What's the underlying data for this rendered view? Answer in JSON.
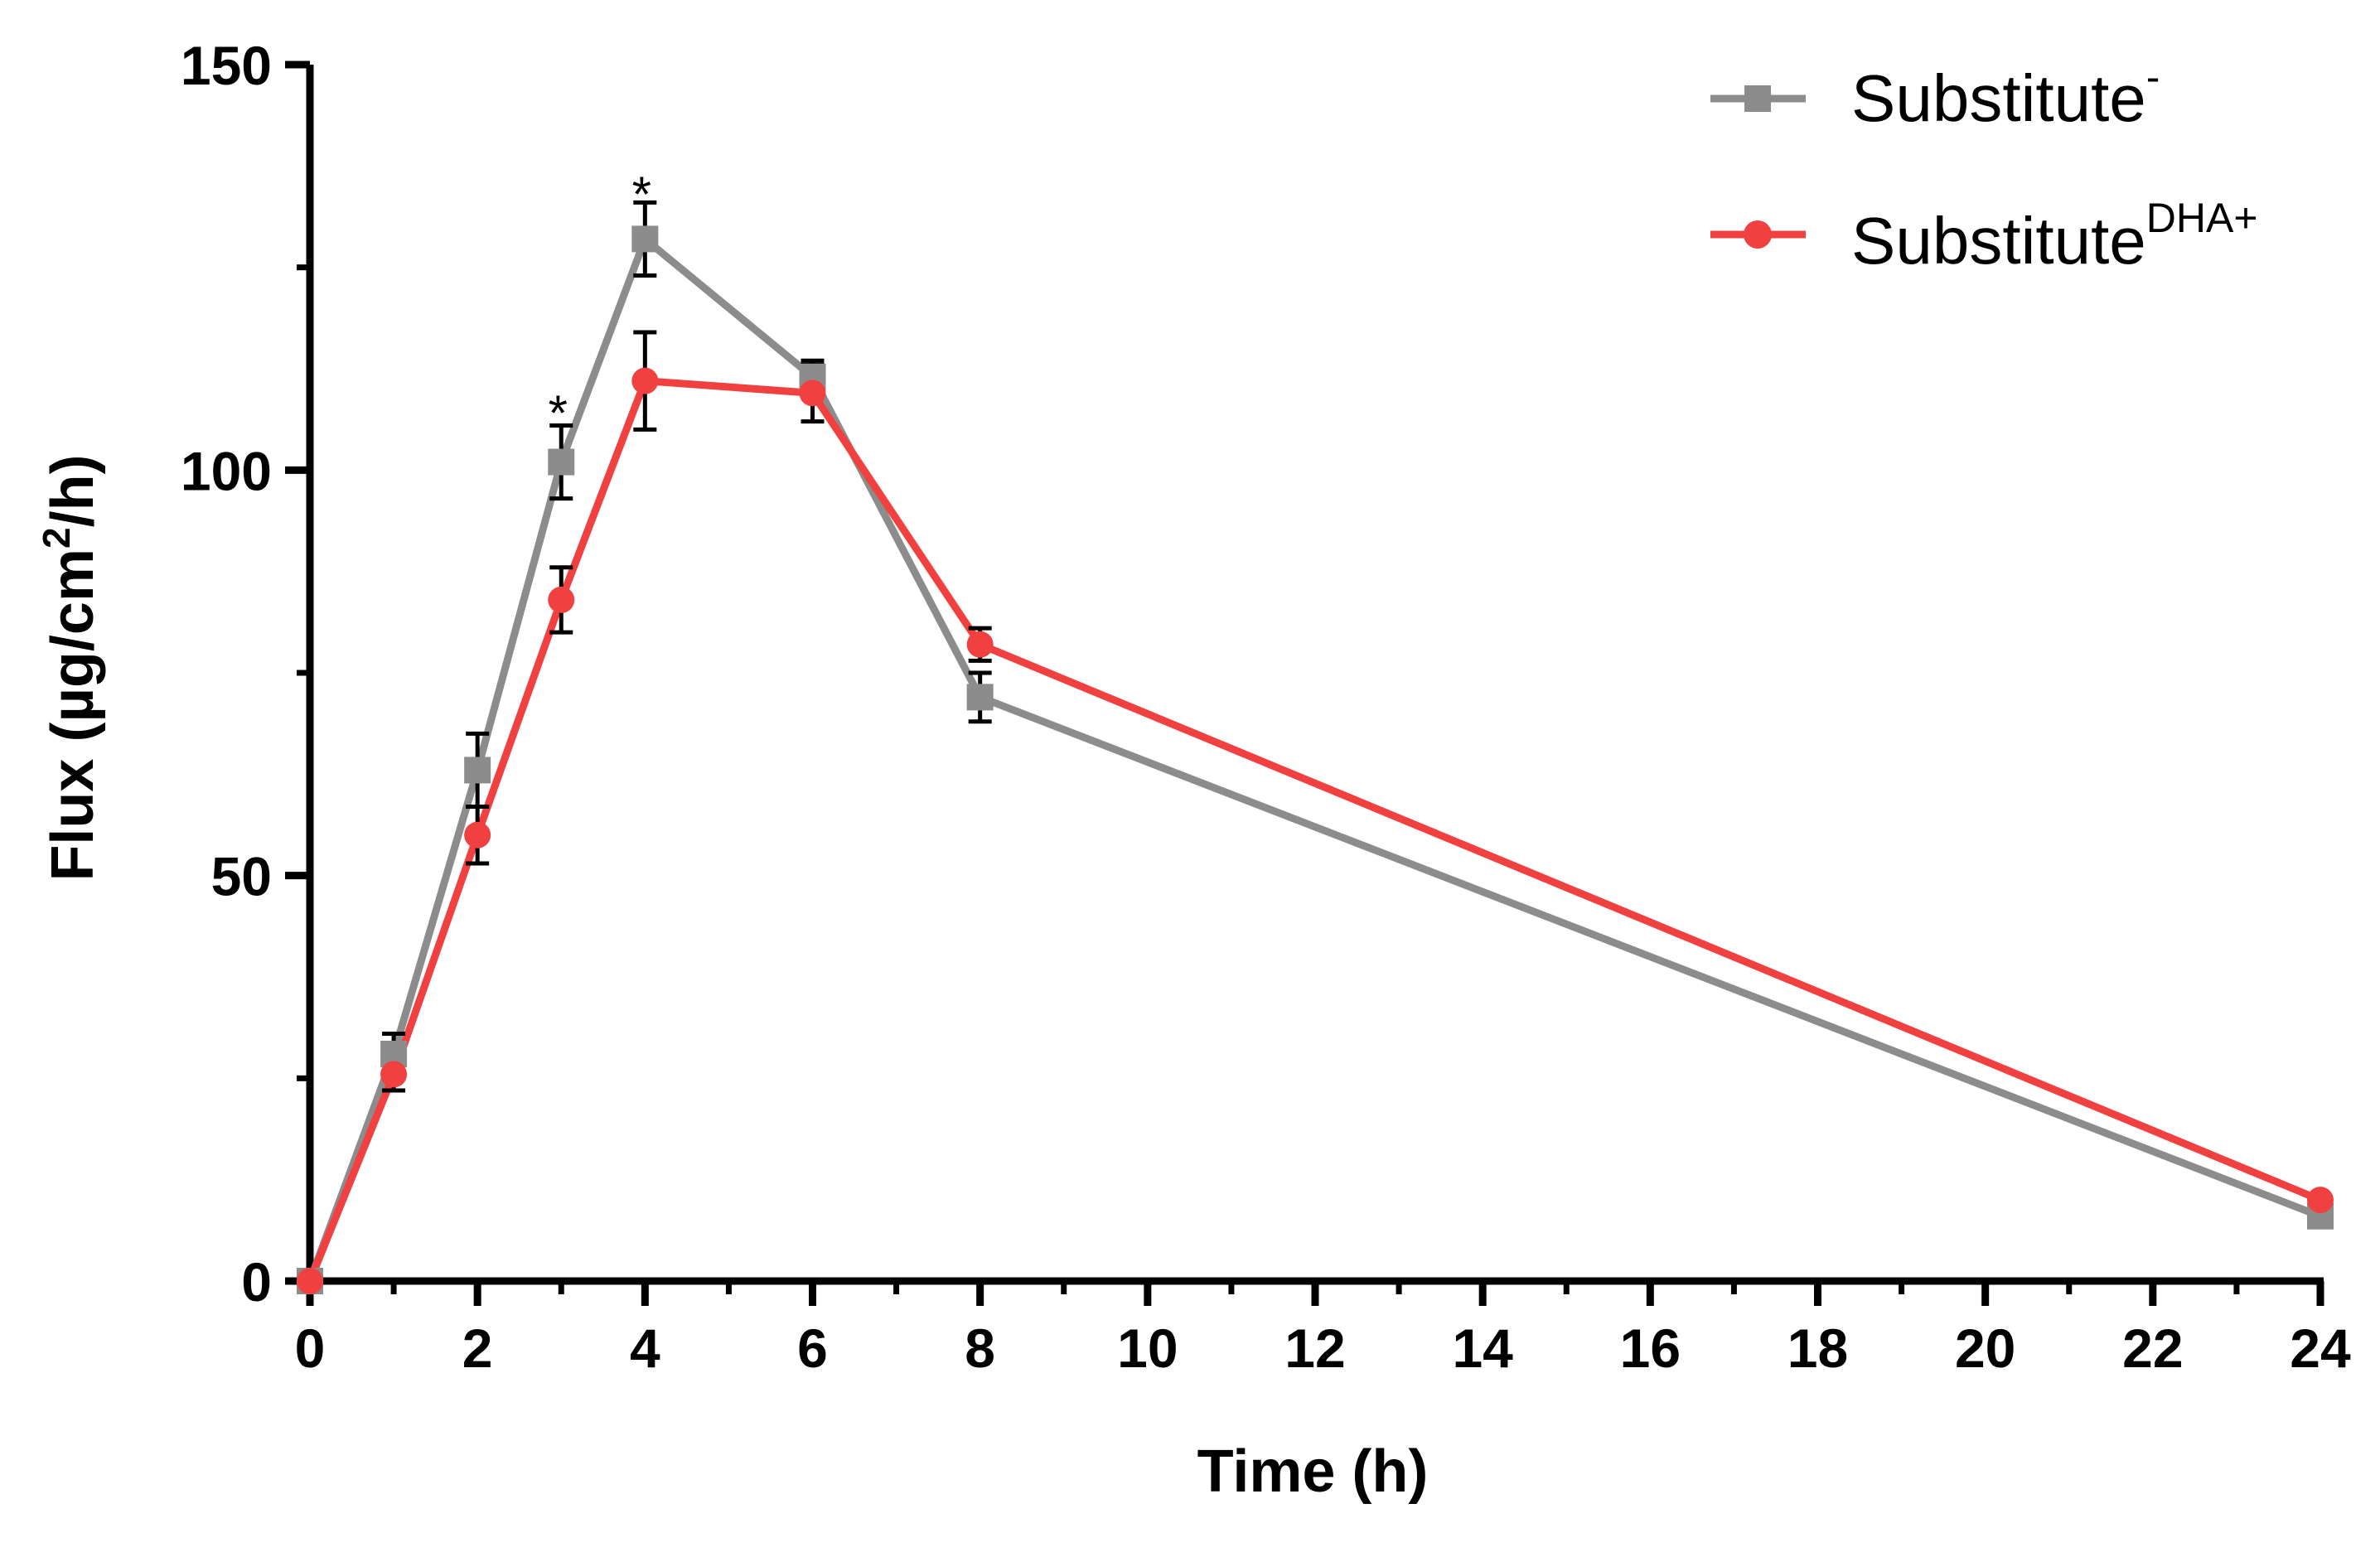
{
  "chart_data": {
    "type": "line",
    "title": "",
    "xlabel": "Time (h)",
    "ylabel": "Flux (µg/cm²/h)",
    "ylabel_parts": {
      "pre": "Flux (µg/cm",
      "sup": "2",
      "post": "/h)"
    },
    "xlim": [
      0,
      24
    ],
    "ylim": [
      0,
      150
    ],
    "x_ticks": [
      0,
      2,
      4,
      6,
      8,
      10,
      12,
      14,
      16,
      18,
      20,
      22,
      24
    ],
    "y_ticks": [
      0,
      50,
      100,
      150
    ],
    "grid": false,
    "legend_position": "top-right",
    "series": [
      {
        "name": "Substitute⁻",
        "name_base": "Substitute",
        "name_sup": "-",
        "color": "#8c8c8c",
        "marker": "square",
        "x": [
          0,
          1,
          2,
          3,
          4,
          6,
          8,
          24
        ],
        "y": [
          0,
          28,
          63,
          101,
          128.5,
          111.5,
          72,
          8
        ],
        "error": [
          0,
          2.5,
          4.5,
          4.5,
          4.5,
          2,
          3,
          0
        ]
      },
      {
        "name": "Substitute DHA+",
        "name_base": "Substitute",
        "name_sup": "DHA+",
        "color": "#f04040",
        "marker": "circle",
        "x": [
          0,
          1,
          2,
          3,
          4,
          6,
          8,
          24
        ],
        "y": [
          0,
          25.5,
          55,
          84,
          111,
          109.5,
          78.5,
          10
        ],
        "error": [
          0,
          2,
          3.5,
          4,
          6,
          3.5,
          2,
          0
        ]
      }
    ],
    "annotations": [
      {
        "text": "*",
        "x": 3,
        "y": 108
      },
      {
        "text": "*",
        "x": 4,
        "y": 135
      }
    ]
  }
}
